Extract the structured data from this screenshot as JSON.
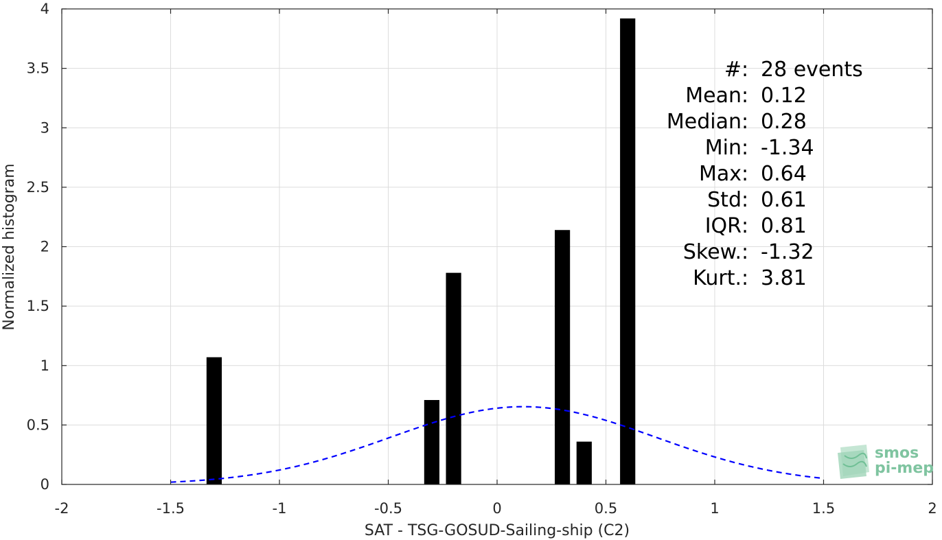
{
  "chart_data": {
    "type": "bar",
    "xlabel": "SAT - TSG-GOSUD-Sailing-ship (C2)",
    "ylabel": "Normalized histogram",
    "xlim": [
      -2,
      2
    ],
    "ylim": [
      0,
      4
    ],
    "xticks": [
      -2,
      -1.5,
      -1,
      -0.5,
      0,
      0.5,
      1,
      1.5,
      2
    ],
    "xtick_labels": [
      "-2",
      "-1.5",
      "-1",
      "-0.5",
      "0",
      "0.5",
      "1",
      "1.5",
      "2"
    ],
    "yticks": [
      0,
      0.5,
      1,
      1.5,
      2,
      2.5,
      3,
      3.5,
      4
    ],
    "ytick_labels": [
      "0",
      "0.5",
      "1",
      "1.5",
      "2",
      "2.5",
      "3",
      "3.5",
      "4"
    ],
    "grid": true,
    "bar_width": 0.07,
    "bars": [
      {
        "x": -1.3,
        "value": 1.07
      },
      {
        "x": -0.3,
        "value": 0.71
      },
      {
        "x": -0.2,
        "value": 1.78
      },
      {
        "x": 0.3,
        "value": 2.14
      },
      {
        "x": 0.4,
        "value": 0.36
      },
      {
        "x": 0.6,
        "value": 3.92
      }
    ],
    "bar_color": "#000000",
    "fit_curve": {
      "style": "dashed",
      "color": "#0000ff",
      "mean": 0.12,
      "std": 0.61,
      "x_range": [
        -1.5,
        1.5
      ]
    },
    "stats_lines": [
      {
        "label": "#",
        "sep": " : ",
        "value": "28 events"
      },
      {
        "label": "Mean",
        "sep": " : ",
        "value": "0.12"
      },
      {
        "label": "Median",
        "sep": " : ",
        "value": "0.28"
      },
      {
        "label": "Min",
        "sep": " : ",
        "value": "-1.34"
      },
      {
        "label": "Max",
        "sep": " : ",
        "value": "0.64"
      },
      {
        "label": "Std",
        "sep": " : ",
        "value": "0.61"
      },
      {
        "label": "IQR",
        "sep": " : ",
        "value": "0.81"
      },
      {
        "label": "Skew.",
        "sep": " : ",
        "value": "-1.32"
      },
      {
        "label": "Kurt.",
        "sep": " : ",
        "value": "3.81"
      }
    ]
  },
  "logo": {
    "line1": "smos",
    "line2": "pi-mep",
    "color": "#7fc4a0"
  }
}
